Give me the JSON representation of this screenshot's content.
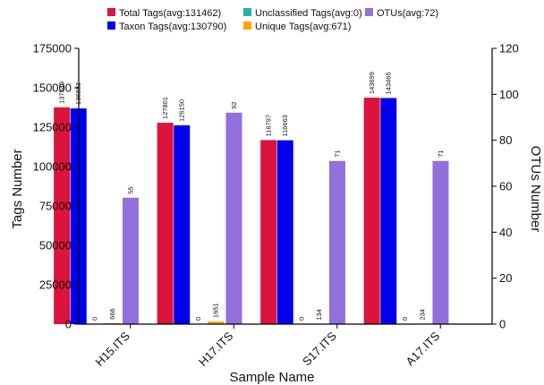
{
  "chart_data": {
    "type": "bar",
    "xlabel": "Sample Name",
    "ylabel_left": "Tags Number",
    "ylabel_right": "OTUs Number",
    "ylim_left": [
      0,
      175000
    ],
    "ylim_right": [
      0,
      120
    ],
    "yticks_left": [
      "0",
      "25000",
      "50000",
      "75000",
      "100000",
      "125000",
      "150000",
      "175000"
    ],
    "yticks_right": [
      "0",
      "20",
      "40",
      "60",
      "80",
      "100",
      "120"
    ],
    "categories": [
      "H15.ITS",
      "H17.ITS",
      "S17.ITS",
      "A17.ITS"
    ],
    "legend": [
      {
        "label": "Total Tags(avg:131462)"
      },
      {
        "label": "Taxon Tags(avg:130790)"
      },
      {
        "label": "Unclassified Tags(avg:0)"
      },
      {
        "label": "Unique Tags(avg:671)"
      },
      {
        "label": "OTUs(avg:72)"
      }
    ],
    "series": [
      {
        "key": "total",
        "color": "#dc143c",
        "axis": "left",
        "values": [
          137549,
          127801,
          116797,
          143699
        ],
        "labels": [
          "137549",
          "127801",
          "116797",
          "143699"
        ]
      },
      {
        "key": "taxon",
        "color": "#0000ee",
        "axis": "left",
        "values": [
          136883,
          126150,
          116663,
          143465
        ],
        "labels": [
          "136883",
          "126150",
          "116663",
          "143465"
        ]
      },
      {
        "key": "unclassified",
        "color": "#20b2aa",
        "axis": "left",
        "values": [
          0,
          0,
          0,
          0
        ],
        "labels": [
          "0",
          "0",
          "0",
          "0"
        ]
      },
      {
        "key": "unique",
        "color": "#ffa500",
        "axis": "left",
        "values": [
          666,
          1651,
          134,
          234
        ],
        "labels": [
          "666",
          "1651",
          "134",
          "234"
        ]
      },
      {
        "key": "otus",
        "color": "#9370db",
        "axis": "right",
        "values": [
          55,
          92,
          71,
          71
        ],
        "labels": [
          "55",
          "92",
          "71",
          "71"
        ]
      }
    ]
  }
}
